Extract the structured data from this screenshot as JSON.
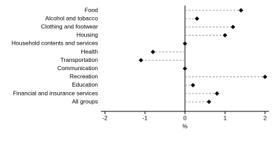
{
  "chart_data": {
    "type": "dot",
    "categories": [
      "Food",
      "Alcohol and tobacco",
      "Clothing and footwear",
      "Housing",
      "Household contents and services",
      "Health",
      "Transportation",
      "Communication",
      "Recreation",
      "Education",
      "Financial and insurance services",
      "All groups"
    ],
    "values": [
      1.4,
      0.3,
      1.2,
      1.0,
      0.0,
      -0.8,
      -1.1,
      0.0,
      2.0,
      0.2,
      0.8,
      0.6
    ],
    "color": "#000000",
    "xlabel": "%",
    "xlim": [
      -2.1,
      2.1
    ],
    "xticks": [
      -2,
      -1,
      0,
      1,
      2
    ]
  }
}
